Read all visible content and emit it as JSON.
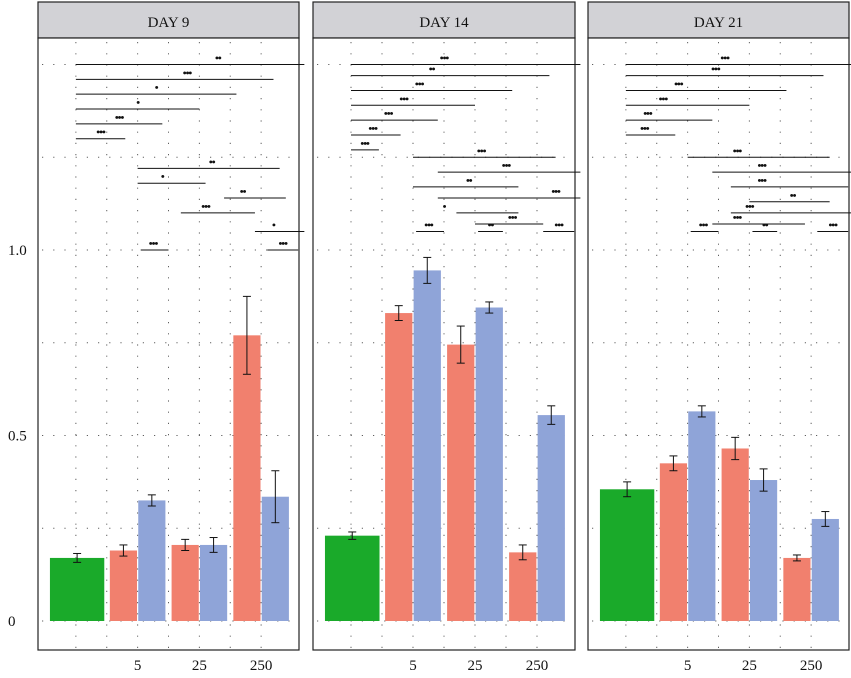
{
  "chart_data": [
    {
      "type": "bar",
      "panel": "DAY 9",
      "x_tick_labels": [
        "",
        "5",
        "25",
        "250"
      ],
      "ylim": [
        0,
        1.6
      ],
      "y_ticks": [
        0,
        0.5,
        1.0
      ],
      "y_tick_labels": [
        "0",
        "0.5",
        "1.0"
      ],
      "grid": true,
      "bars": [
        {
          "slot": 0,
          "color": "green",
          "value": 0.17,
          "err": 0.012
        },
        {
          "slot": 1,
          "color": "salmon",
          "value": 0.19,
          "err": 0.015
        },
        {
          "slot": 1,
          "color": "blue",
          "value": 0.325,
          "err": 0.015
        },
        {
          "slot": 2,
          "color": "salmon",
          "value": 0.205,
          "err": 0.015
        },
        {
          "slot": 2,
          "color": "blue",
          "value": 0.205,
          "err": 0.02
        },
        {
          "slot": 3,
          "color": "salmon",
          "value": 0.77,
          "err": 0.105
        },
        {
          "slot": 3,
          "color": "blue",
          "value": 0.335,
          "err": 0.07
        }
      ],
      "significance": [
        {
          "x1": 0.5,
          "x2": 4.2,
          "y": 1.5,
          "stars": "••",
          "label_x": 2.8
        },
        {
          "x1": 0.5,
          "x2": 3.7,
          "y": 1.46,
          "stars": "•••",
          "label_x": 2.3
        },
        {
          "x1": 0.5,
          "x2": 3.1,
          "y": 1.42,
          "stars": "•",
          "label_x": 1.8
        },
        {
          "x1": 0.5,
          "x2": 2.5,
          "y": 1.38,
          "stars": "•",
          "label_x": 1.5
        },
        {
          "x1": 0.5,
          "x2": 1.9,
          "y": 1.34,
          "stars": "•••",
          "label_x": 1.2
        },
        {
          "x1": 0.5,
          "x2": 1.3,
          "y": 1.3,
          "stars": "•••",
          "label_x": 0.9
        },
        {
          "x1": 1.5,
          "x2": 3.8,
          "y": 1.22,
          "stars": "••",
          "label_x": 2.7
        },
        {
          "x1": 1.5,
          "x2": 2.6,
          "y": 1.18,
          "stars": "•",
          "label_x": 1.9
        },
        {
          "x1": 2.9,
          "x2": 3.9,
          "y": 1.14,
          "stars": "••",
          "label_x": 3.2
        },
        {
          "x1": 2.2,
          "x2": 3.4,
          "y": 1.1,
          "stars": "•••",
          "label_x": 2.6
        },
        {
          "x1": 3.4,
          "x2": 4.2,
          "y": 1.05,
          "stars": "•",
          "label_x": 3.7
        },
        {
          "x1": 1.55,
          "x2": 2.0,
          "y": 1.0,
          "stars": "•••",
          "label_x": 1.75
        },
        {
          "x1": 3.6,
          "x2": 4.1,
          "y": 1.0,
          "stars": "•••",
          "label_x": 3.85
        }
      ]
    },
    {
      "type": "bar",
      "panel": "DAY 14",
      "x_tick_labels": [
        "",
        "5",
        "25",
        "250"
      ],
      "ylim": [
        0,
        1.6
      ],
      "y_ticks": [
        0,
        0.5,
        1.0
      ],
      "grid": true,
      "bars": [
        {
          "slot": 0,
          "color": "green",
          "value": 0.23,
          "err": 0.01
        },
        {
          "slot": 1,
          "color": "salmon",
          "value": 0.83,
          "err": 0.02
        },
        {
          "slot": 1,
          "color": "blue",
          "value": 0.945,
          "err": 0.035
        },
        {
          "slot": 2,
          "color": "salmon",
          "value": 0.745,
          "err": 0.05
        },
        {
          "slot": 2,
          "color": "blue",
          "value": 0.845,
          "err": 0.015
        },
        {
          "slot": 3,
          "color": "salmon",
          "value": 0.185,
          "err": 0.02
        },
        {
          "slot": 3,
          "color": "blue",
          "value": 0.555,
          "err": 0.025
        }
      ],
      "significance": [
        {
          "x1": 0.5,
          "x2": 4.2,
          "y": 1.5,
          "stars": "•••",
          "label_x": 2.0
        },
        {
          "x1": 0.5,
          "x2": 3.7,
          "y": 1.47,
          "stars": "••",
          "label_x": 1.8
        },
        {
          "x1": 0.5,
          "x2": 3.1,
          "y": 1.43,
          "stars": "•••",
          "label_x": 1.6
        },
        {
          "x1": 0.5,
          "x2": 2.5,
          "y": 1.39,
          "stars": "•••",
          "label_x": 1.35
        },
        {
          "x1": 0.5,
          "x2": 1.9,
          "y": 1.35,
          "stars": "•••",
          "label_x": 1.1
        },
        {
          "x1": 0.5,
          "x2": 1.3,
          "y": 1.31,
          "stars": "•••",
          "label_x": 0.85
        },
        {
          "x1": 0.5,
          "x2": 0.95,
          "y": 1.27,
          "stars": "•••",
          "label_x": 0.72
        },
        {
          "x1": 1.5,
          "x2": 3.8,
          "y": 1.25,
          "stars": "•••",
          "label_x": 2.6
        },
        {
          "x1": 1.9,
          "x2": 4.2,
          "y": 1.21,
          "stars": "•••",
          "label_x": 3.0
        },
        {
          "x1": 1.5,
          "x2": 3.2,
          "y": 1.17,
          "stars": "••",
          "label_x": 2.4
        },
        {
          "x1": 1.9,
          "x2": 4.2,
          "y": 1.14,
          "stars": "•••",
          "label_x": 3.8
        },
        {
          "x1": 2.2,
          "x2": 3.2,
          "y": 1.1,
          "stars": "•",
          "label_x": 2.0
        },
        {
          "x1": 2.5,
          "x2": 3.6,
          "y": 1.07,
          "stars": "•••",
          "label_x": 3.1
        },
        {
          "x1": 1.55,
          "x2": 2.0,
          "y": 1.05,
          "stars": "•••",
          "label_x": 1.75
        },
        {
          "x1": 2.55,
          "x2": 2.95,
          "y": 1.05,
          "stars": "••",
          "label_x": 2.75
        },
        {
          "x1": 3.6,
          "x2": 4.1,
          "y": 1.05,
          "stars": "•••",
          "label_x": 3.85
        }
      ]
    },
    {
      "type": "bar",
      "panel": "DAY 21",
      "x_tick_labels": [
        "",
        "5",
        "25",
        "250"
      ],
      "ylim": [
        0,
        1.6
      ],
      "y_ticks": [
        0,
        0.5,
        1.0
      ],
      "grid": true,
      "bars": [
        {
          "slot": 0,
          "color": "green",
          "value": 0.355,
          "err": 0.02
        },
        {
          "slot": 1,
          "color": "salmon",
          "value": 0.425,
          "err": 0.02
        },
        {
          "slot": 1,
          "color": "blue",
          "value": 0.565,
          "err": 0.015
        },
        {
          "slot": 2,
          "color": "salmon",
          "value": 0.465,
          "err": 0.03
        },
        {
          "slot": 2,
          "color": "blue",
          "value": 0.38,
          "err": 0.03
        },
        {
          "slot": 3,
          "color": "salmon",
          "value": 0.17,
          "err": 0.008
        },
        {
          "slot": 3,
          "color": "blue",
          "value": 0.275,
          "err": 0.02
        }
      ],
      "significance": [
        {
          "x1": 0.5,
          "x2": 4.2,
          "y": 1.5,
          "stars": "•••",
          "label_x": 2.1
        },
        {
          "x1": 0.5,
          "x2": 3.7,
          "y": 1.47,
          "stars": "•••",
          "label_x": 1.95
        },
        {
          "x1": 0.5,
          "x2": 3.1,
          "y": 1.43,
          "stars": "•••",
          "label_x": 1.35
        },
        {
          "x1": 0.5,
          "x2": 2.5,
          "y": 1.39,
          "stars": "•••",
          "label_x": 1.1
        },
        {
          "x1": 0.5,
          "x2": 1.9,
          "y": 1.35,
          "stars": "•••",
          "label_x": 0.85
        },
        {
          "x1": 0.5,
          "x2": 1.3,
          "y": 1.31,
          "stars": "•••",
          "label_x": 0.8
        },
        {
          "x1": 1.5,
          "x2": 3.8,
          "y": 1.25,
          "stars": "•••",
          "label_x": 2.3
        },
        {
          "x1": 1.9,
          "x2": 4.2,
          "y": 1.21,
          "stars": "•••",
          "label_x": 2.7
        },
        {
          "x1": 2.2,
          "x2": 4.1,
          "y": 1.17,
          "stars": "•••",
          "label_x": 2.7
        },
        {
          "x1": 2.5,
          "x2": 3.8,
          "y": 1.13,
          "stars": "••",
          "label_x": 3.2
        },
        {
          "x1": 2.2,
          "x2": 4.2,
          "y": 1.1,
          "stars": "•••",
          "label_x": 2.5
        },
        {
          "x1": 1.9,
          "x2": 3.4,
          "y": 1.07,
          "stars": "•••",
          "label_x": 2.3
        },
        {
          "x1": 1.55,
          "x2": 2.0,
          "y": 1.05,
          "stars": "•••",
          "label_x": 1.75
        },
        {
          "x1": 2.55,
          "x2": 2.95,
          "y": 1.05,
          "stars": "••",
          "label_x": 2.75
        },
        {
          "x1": 3.6,
          "x2": 4.1,
          "y": 1.05,
          "stars": "•••",
          "label_x": 3.85
        }
      ]
    }
  ],
  "colors": {
    "green": "#1aaa2a",
    "salmon": "#f1806e",
    "blue": "#8fa4d8",
    "header_bg": "#d2d2d6",
    "panel_border": "#222222",
    "grid": "#444444"
  }
}
